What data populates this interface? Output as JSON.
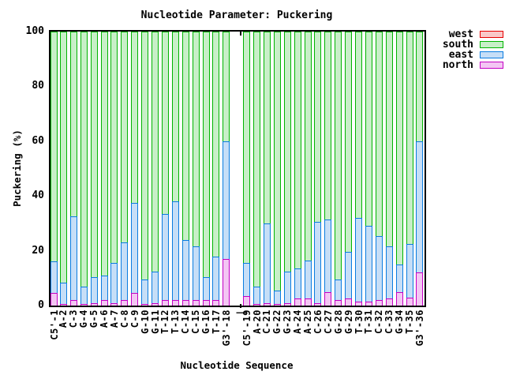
{
  "title": "Nucleotide Parameter: Puckering",
  "x_axis": {
    "label": "Nucleotide Sequence",
    "separator_label": "|"
  },
  "y_axis": {
    "label": "Puckering (%)",
    "ticks": [
      0,
      20,
      40,
      60,
      80,
      100
    ]
  },
  "legend": {
    "items": [
      {
        "label": "west"
      },
      {
        "label": "south"
      },
      {
        "label": "east"
      },
      {
        "label": "north"
      }
    ]
  },
  "colors": {
    "west": {
      "fill": "#f9c8c8",
      "stroke": "#e60000"
    },
    "south": {
      "fill": "#c8efc8",
      "stroke": "#00b400"
    },
    "east": {
      "fill": "#c6def7",
      "stroke": "#0a7ce0"
    },
    "north": {
      "fill": "#f3c6f3",
      "stroke": "#c400c4"
    }
  },
  "chart_data": {
    "type": "bar",
    "stacked": true,
    "title": "Nucleotide Parameter: Puckering",
    "xlabel": "Nucleotide Sequence",
    "ylabel": "Puckering (%)",
    "ylim": [
      0,
      100
    ],
    "grid": false,
    "legend_position": "top-right-outside",
    "gap_after_index": 17,
    "stack_order_bottom_to_top": [
      "north",
      "east",
      "south"
    ],
    "categories": [
      "C5'-1",
      "A-2",
      "C-3",
      "G-4",
      "G-5",
      "A-6",
      "A-7",
      "C-8",
      "C-9",
      "G-10",
      "G-11",
      "T-12",
      "T-13",
      "C-14",
      "C-15",
      "G-16",
      "T-17",
      "G3'-18",
      "C5'-19",
      "A-20",
      "C-21",
      "G-22",
      "G-23",
      "A-24",
      "A-25",
      "C-26",
      "C-27",
      "G-28",
      "G-29",
      "T-30",
      "T-31",
      "C-32",
      "C-33",
      "G-34",
      "T-35",
      "G3'-36"
    ],
    "series": [
      {
        "name": "west",
        "values": [
          0,
          0,
          0,
          0,
          0,
          0,
          0,
          0,
          0,
          0,
          0,
          0,
          0,
          0,
          0,
          0,
          0,
          0,
          0,
          0,
          0,
          0,
          0,
          0,
          0,
          0,
          0,
          0,
          0,
          0,
          0,
          0,
          0,
          0,
          0,
          0
        ]
      },
      {
        "name": "south",
        "values": [
          84,
          91.5,
          67.5,
          93,
          89.5,
          89,
          84.5,
          77,
          62.5,
          90.5,
          87.5,
          66.5,
          62,
          76,
          78.5,
          89.5,
          82,
          40,
          84.5,
          93,
          70,
          94.5,
          87.5,
          86.5,
          83.5,
          69.5,
          68.5,
          90.5,
          80.5,
          68,
          71,
          74.5,
          78.5,
          85,
          77.5,
          40
        ]
      },
      {
        "name": "east",
        "values": [
          11.5,
          8,
          30.5,
          6.5,
          9.5,
          9,
          14.5,
          21,
          33,
          9,
          11.5,
          31.5,
          36,
          22,
          19.5,
          8.5,
          16,
          43,
          12,
          6.5,
          29,
          5,
          11.5,
          11,
          14,
          29.5,
          26.5,
          7.5,
          17,
          30.5,
          27.5,
          23.5,
          19,
          10,
          19.5,
          48
        ]
      },
      {
        "name": "north",
        "values": [
          4.5,
          0.5,
          2,
          0.5,
          1,
          2,
          1,
          2,
          4.5,
          0.5,
          1,
          2,
          2,
          2,
          2,
          2,
          2,
          17,
          3.5,
          0.5,
          1,
          0.5,
          1,
          2.5,
          2.5,
          1,
          5,
          2,
          2.5,
          1.5,
          1.5,
          2,
          2.5,
          5,
          3,
          12
        ]
      }
    ]
  }
}
